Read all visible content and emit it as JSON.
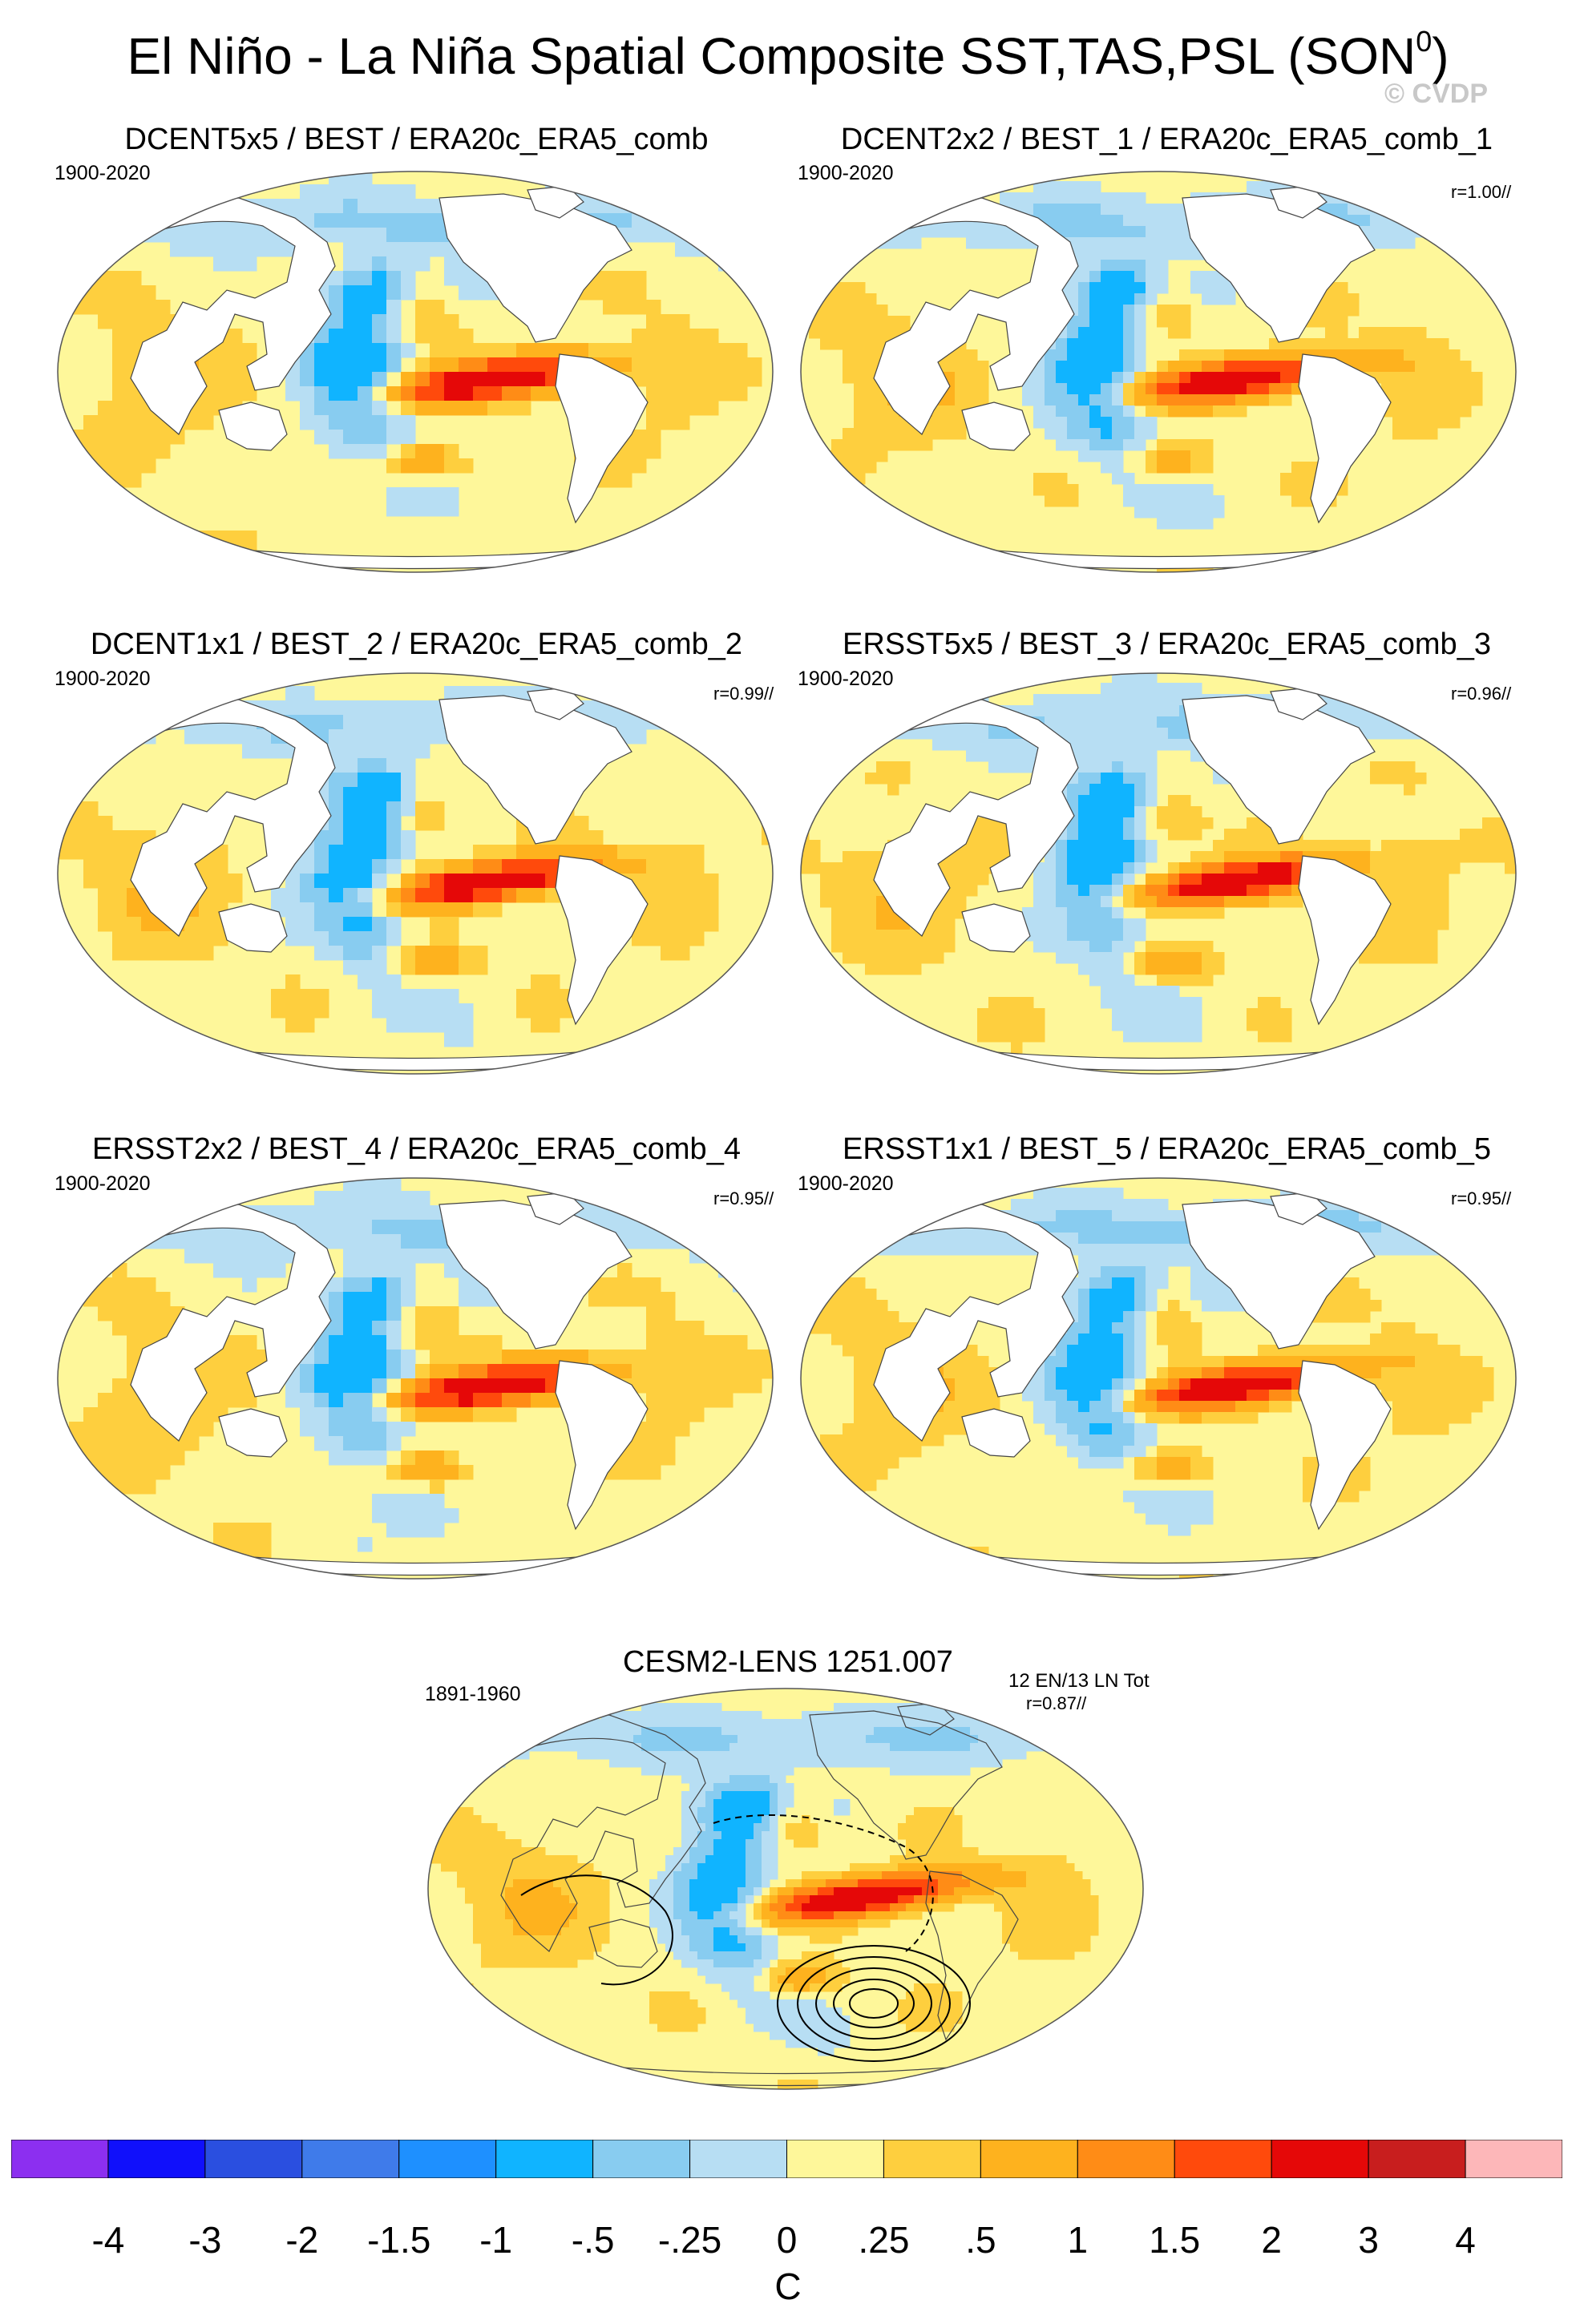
{
  "figure": {
    "title": "El Niño - La Niña Spatial Composite SST,TAS,PSL (SON",
    "title_superscript": "0",
    "title_suffix": ")",
    "copyright": "© CVDP"
  },
  "panels": [
    {
      "title": "DCENT5x5 / BEST / ERA20c_ERA5_comb",
      "period": "1900-2020",
      "r": ""
    },
    {
      "title": "DCENT2x2 / BEST_1 / ERA20c_ERA5_comb_1",
      "period": "1900-2020",
      "r": "r=1.00//"
    },
    {
      "title": "DCENT1x1 / BEST_2 / ERA20c_ERA5_comb_2",
      "period": "1900-2020",
      "r": "r=0.99//"
    },
    {
      "title": "ERSST5x5 / BEST_3 / ERA20c_ERA5_comb_3",
      "period": "1900-2020",
      "r": "r=0.96//"
    },
    {
      "title": "ERSST2x2 / BEST_4 / ERA20c_ERA5_comb_4",
      "period": "1900-2020",
      "r": "r=0.95//"
    },
    {
      "title": "ERSST1x1 / BEST_5 / ERA20c_ERA5_comb_5",
      "period": "1900-2020",
      "r": "r=0.95//"
    },
    {
      "title": "CESM2-LENS 1251.007",
      "period": "1891-1960",
      "r": "r=0.87//",
      "counts": "12 EN/13 LN Tot"
    }
  ],
  "chart_data": {
    "type": "heatmap",
    "title": "El Niño - La Niña Spatial Composite SST,TAS,PSL (SON0)",
    "projection": "Robinson-like global maps, Pacific-centered",
    "variables": [
      "SST",
      "TAS",
      "PSL (contours, bottom panel only)"
    ],
    "colorbar": {
      "unit": "C",
      "labels": [
        "-4",
        "-3",
        "-2",
        "-1.5",
        "-1",
        "-.5",
        "-.25",
        "0",
        ".25",
        ".5",
        "1",
        "1.5",
        "2",
        "3",
        "4"
      ],
      "levels": [
        -4,
        -3,
        -2,
        -1.5,
        -1,
        -0.5,
        -0.25,
        0,
        0.25,
        0.5,
        1,
        1.5,
        2,
        3,
        4
      ],
      "colors": [
        "#8c2ff0",
        "#1010fb",
        "#2a4fe0",
        "#3f7bea",
        "#1e90ff",
        "#10b4ff",
        "#88ccf0",
        "#b7def3",
        "#fef79a",
        "#fecf3e",
        "#feb21e",
        "#ff8c16",
        "#ff4a0c",
        "#e50808",
        "#c81e1e",
        "#fdb7b9"
      ]
    },
    "panels": [
      {
        "name": "DCENT5x5 / BEST / ERA20c_ERA5_comb",
        "period": "1900-2020",
        "pattern_corr": null
      },
      {
        "name": "DCENT2x2 / BEST_1 / ERA20c_ERA5_comb_1",
        "period": "1900-2020",
        "pattern_corr": 1.0
      },
      {
        "name": "DCENT1x1 / BEST_2 / ERA20c_ERA5_comb_2",
        "period": "1900-2020",
        "pattern_corr": 0.99
      },
      {
        "name": "ERSST5x5 / BEST_3 / ERA20c_ERA5_comb_3",
        "period": "1900-2020",
        "pattern_corr": 0.96
      },
      {
        "name": "ERSST2x2 / BEST_4 / ERA20c_ERA5_comb_4",
        "period": "1900-2020",
        "pattern_corr": 0.95
      },
      {
        "name": "ERSST1x1 / BEST_5 / ERA20c_ERA5_comb_5",
        "period": "1900-2020",
        "pattern_corr": 0.95
      },
      {
        "name": "CESM2-LENS 1251.007",
        "period": "1891-1960",
        "pattern_corr": 0.87,
        "events": "12 EN/13 LN"
      }
    ],
    "features": {
      "eastern_equatorial_pacific_max": "1.5 to 3 C (warm tongue)",
      "western_pacific_horseshoe": "-0.5 to -1 C (cool)",
      "indian_ocean": "0.25 to 0.5 C (warm)",
      "south_pacific_warm_blob": "0.5 to 1 C"
    }
  }
}
